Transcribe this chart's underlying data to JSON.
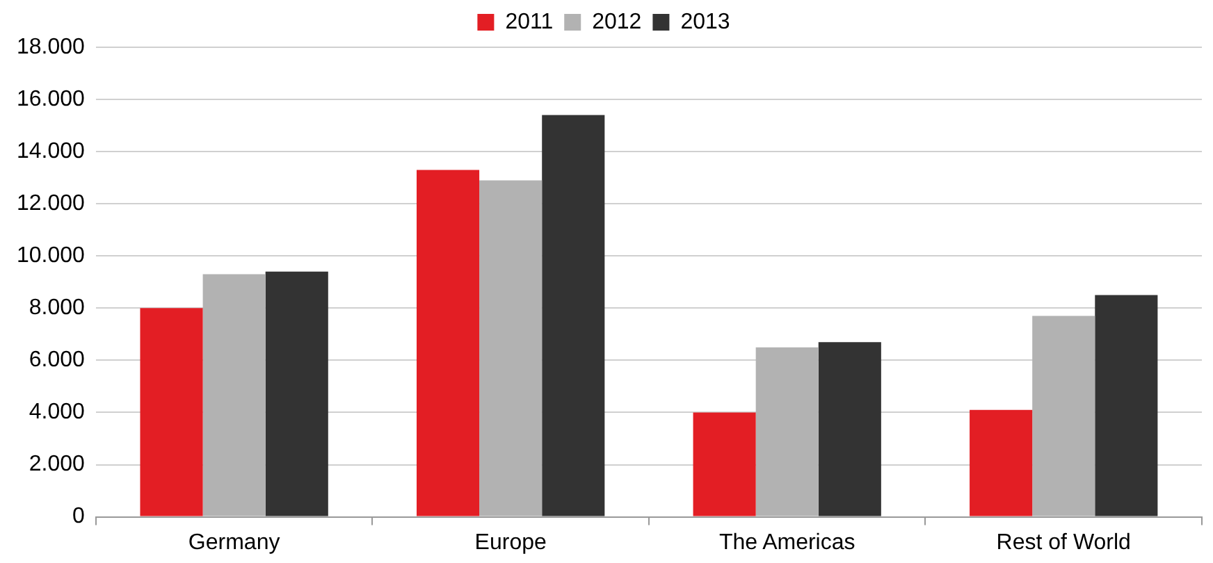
{
  "chart_data": {
    "type": "bar",
    "categories": [
      "Germany",
      "Europe",
      "The Americas",
      "Rest of World"
    ],
    "series": [
      {
        "name": "2011",
        "color": "#e31e24",
        "values": [
          8000,
          13300,
          4000,
          4100
        ]
      },
      {
        "name": "2012",
        "color": "#b2b2b2",
        "values": [
          9300,
          12900,
          6500,
          7700
        ]
      },
      {
        "name": "2013",
        "color": "#333333",
        "values": [
          9400,
          15400,
          6700,
          8500
        ]
      }
    ],
    "ylim": [
      0,
      18000
    ],
    "yticks": [
      {
        "value": 0,
        "label": "0"
      },
      {
        "value": 2000,
        "label": "2.000"
      },
      {
        "value": 4000,
        "label": "4.000"
      },
      {
        "value": 6000,
        "label": "6.000"
      },
      {
        "value": 8000,
        "label": "8.000"
      },
      {
        "value": 10000,
        "label": "10.000"
      },
      {
        "value": 12000,
        "label": "12.000"
      },
      {
        "value": 14000,
        "label": "14.000"
      },
      {
        "value": 16000,
        "label": "16.000"
      },
      {
        "value": 18000,
        "label": "18.000"
      }
    ],
    "grid": "y",
    "legend": "top"
  }
}
